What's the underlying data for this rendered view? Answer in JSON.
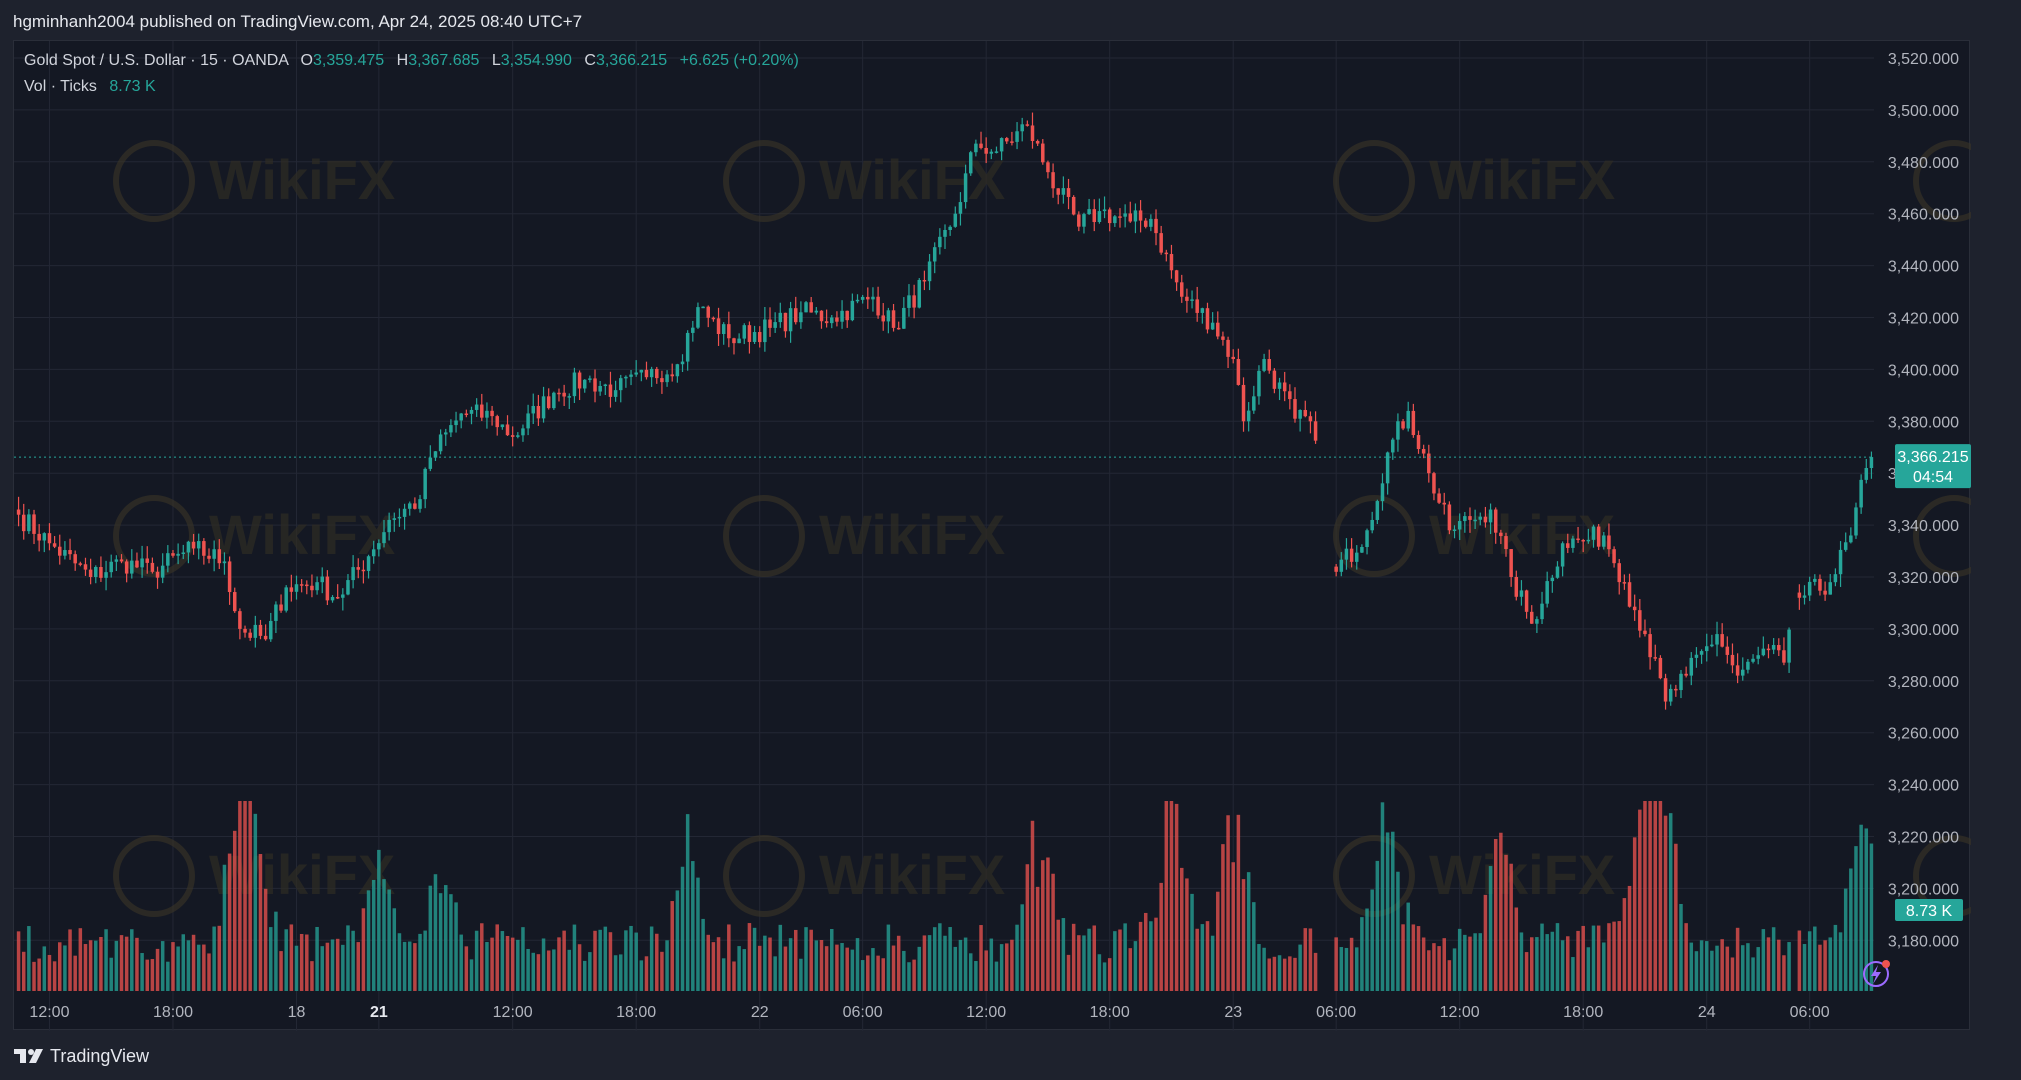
{
  "header": {
    "published_text": "hgminhanh2004 published on TradingView.com, Apr 24, 2025 08:40 UTC+7"
  },
  "legend": {
    "symbol": "Gold Spot / U.S. Dollar · 15 · OANDA",
    "o_label": "O",
    "o_value": "3,359.475",
    "h_label": "H",
    "h_value": "3,367.685",
    "l_label": "L",
    "l_value": "3,354.990",
    "c_label": "C",
    "c_value": "3,366.215",
    "change": "+6.625 (+0.20%)",
    "vol_label": "Vol · Ticks",
    "vol_value": "8.73 K"
  },
  "footer": {
    "brand": "TradingView"
  },
  "watermark": "WikiFX",
  "colors": {
    "up": "#26a69a",
    "down": "#ef5350",
    "background": "#141823",
    "grid": "#232734"
  },
  "chart_data": {
    "type": "candlestick",
    "price_axis": {
      "ticks": [
        3520,
        3500,
        3480,
        3460,
        3440,
        3420,
        3400,
        3380,
        3360,
        3340,
        3320,
        3300,
        3280,
        3260,
        3240,
        3220,
        3200,
        3180
      ],
      "tick_labels": [
        "3,520.000",
        "3,500.000",
        "3,480.000",
        "3,460.000",
        "3,440.000",
        "3,420.000",
        "3,400.000",
        "3,380.000",
        "3,360.000",
        "3,340.000",
        "3,320.000",
        "3,300.000",
        "3,280.000",
        "3,260.000",
        "3,240.000",
        "3,220.000",
        "3,200.000",
        "3,180.000"
      ],
      "last_price": 3366.215,
      "last_price_label": "3,366.215",
      "countdown_label": "04:54",
      "volume_badge": "8.73 K"
    },
    "time_axis": {
      "labels": [
        "12:00",
        "18:00",
        "18",
        "21",
        "12:00",
        "18:00",
        "22",
        "06:00",
        "12:00",
        "18:00",
        "23",
        "06:00",
        "12:00",
        "18:00",
        "24",
        "06:00"
      ],
      "label_index": [
        6,
        30,
        54,
        70,
        96,
        120,
        144,
        164,
        188,
        212,
        236,
        256,
        280,
        304,
        328,
        348
      ],
      "bold": [
        false,
        false,
        false,
        true,
        false,
        false,
        false,
        false,
        false,
        false,
        false,
        false,
        false,
        false,
        false,
        false
      ]
    },
    "bar_count": 361,
    "breaks": [
      [
        252,
        256
      ],
      [
        344,
        346
      ]
    ],
    "anchors": [
      [
        0,
        3344
      ],
      [
        6,
        3333
      ],
      [
        14,
        3320
      ],
      [
        20,
        3326
      ],
      [
        26,
        3322
      ],
      [
        34,
        3331
      ],
      [
        40,
        3326
      ],
      [
        43,
        3300
      ],
      [
        48,
        3296
      ],
      [
        52,
        3316
      ],
      [
        58,
        3318
      ],
      [
        62,
        3312
      ],
      [
        68,
        3328
      ],
      [
        72,
        3342
      ],
      [
        78,
        3350
      ],
      [
        80,
        3366
      ],
      [
        86,
        3383
      ],
      [
        92,
        3382
      ],
      [
        96,
        3374
      ],
      [
        104,
        3391
      ],
      [
        110,
        3396
      ],
      [
        116,
        3392
      ],
      [
        122,
        3397
      ],
      [
        128,
        3402
      ],
      [
        132,
        3424
      ],
      [
        138,
        3412
      ],
      [
        146,
        3416
      ],
      [
        152,
        3422
      ],
      [
        158,
        3420
      ],
      [
        166,
        3428
      ],
      [
        170,
        3416
      ],
      [
        176,
        3434
      ],
      [
        182,
        3460
      ],
      [
        186,
        3487
      ],
      [
        190,
        3484
      ],
      [
        196,
        3494
      ],
      [
        200,
        3476
      ],
      [
        206,
        3455
      ],
      [
        210,
        3461
      ],
      [
        216,
        3457
      ],
      [
        220,
        3458
      ],
      [
        226,
        3428
      ],
      [
        232,
        3418
      ],
      [
        236,
        3404
      ],
      [
        238,
        3380
      ],
      [
        242,
        3404
      ],
      [
        248,
        3381
      ],
      [
        251,
        3380
      ],
      [
        256,
        3322
      ],
      [
        262,
        3338
      ],
      [
        266,
        3368
      ],
      [
        270,
        3384
      ],
      [
        274,
        3360
      ],
      [
        278,
        3338
      ],
      [
        282,
        3342
      ],
      [
        286,
        3346
      ],
      [
        290,
        3320
      ],
      [
        294,
        3302
      ],
      [
        300,
        3333
      ],
      [
        304,
        3334
      ],
      [
        308,
        3336
      ],
      [
        312,
        3318
      ],
      [
        316,
        3298
      ],
      [
        320,
        3272
      ],
      [
        324,
        3282
      ],
      [
        330,
        3298
      ],
      [
        334,
        3282
      ],
      [
        340,
        3292
      ],
      [
        343,
        3287
      ],
      [
        346,
        3312
      ],
      [
        352,
        3318
      ],
      [
        356,
        3336
      ],
      [
        359,
        3362
      ],
      [
        360,
        3366.215
      ]
    ],
    "volume_spikes": [
      [
        43,
        1.0
      ],
      [
        45,
        0.9
      ],
      [
        70,
        0.55
      ],
      [
        82,
        0.6
      ],
      [
        130,
        0.7
      ],
      [
        198,
        0.75
      ],
      [
        224,
        0.9
      ],
      [
        236,
        0.88
      ],
      [
        266,
        0.8
      ],
      [
        288,
        0.75
      ],
      [
        316,
        1.15
      ],
      [
        320,
        0.95
      ],
      [
        358,
        0.75
      ]
    ]
  }
}
